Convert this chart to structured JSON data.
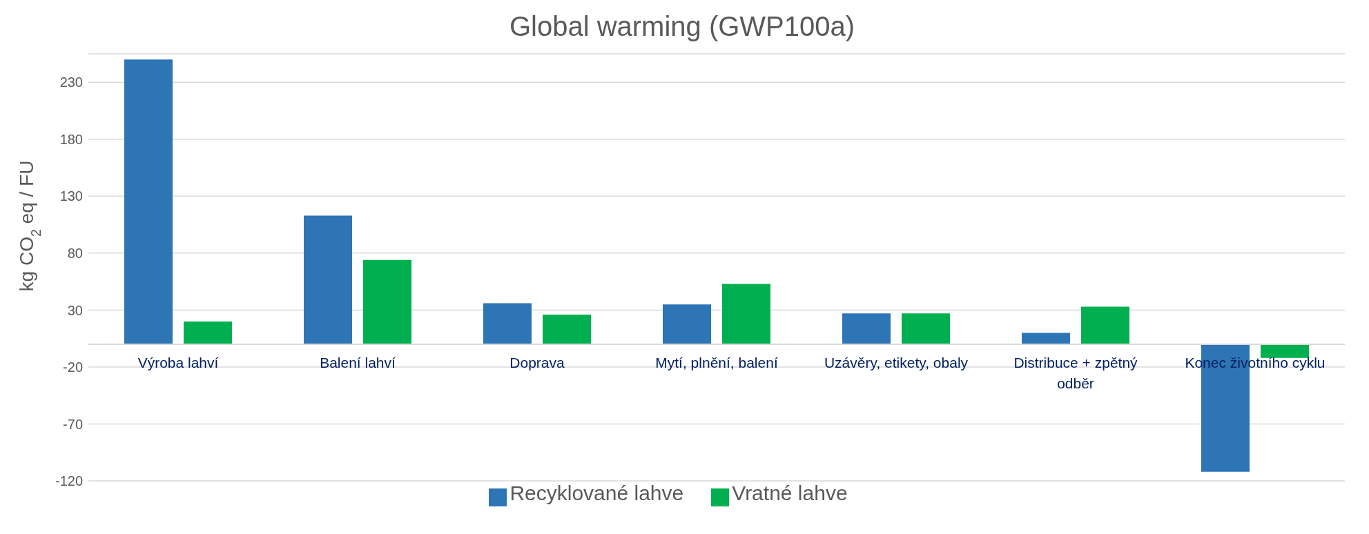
{
  "chart_data": {
    "type": "bar",
    "title": "Global warming (GWP100a)",
    "ylabel": "kg CO$_{2}$ eq / FU",
    "categories": [
      "Výroba lahví",
      "Balení lahví",
      "Doprava",
      "Mytí, plnění, balení",
      "Uzávěry, etikety, obaly",
      "Distribuce + zpětný odběr",
      "Konec životního cyklu"
    ],
    "series": [
      {
        "name": "Recyklované lahve",
        "color": "#2e75b6",
        "values": [
          250,
          113,
          36,
          35,
          27,
          10,
          -112
        ]
      },
      {
        "name": "Vratné lahve",
        "color": "#00b050",
        "values": [
          20,
          74,
          26,
          53,
          27,
          33,
          -12
        ]
      }
    ],
    "ylim": [
      -120,
      255
    ],
    "yticks": [
      -120,
      -70,
      -20,
      30,
      80,
      130,
      180,
      230
    ],
    "grid": "y",
    "legend": "bottom"
  }
}
